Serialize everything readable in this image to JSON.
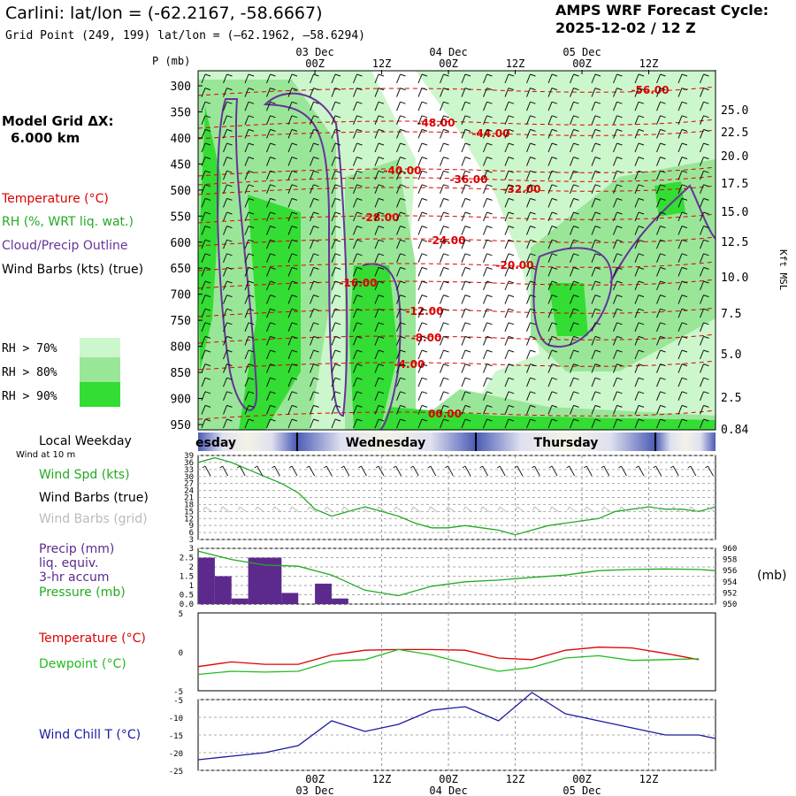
{
  "header": {
    "title": "Carlini:  lat/lon = (-62.2167, -58.6667)",
    "subtitle": "Grid Point (249, 199) lat/lon = (‒62.1962, ‒58.6294)",
    "cycle_line1": "AMPS WRF Forecast Cycle:",
    "cycle_line2": "2025-12-02 / 12  Z",
    "model_grid_line1": "Model Grid ΔX:",
    "model_grid_line2": "6.000 km"
  },
  "legend": {
    "temperature": "Temperature (°C)",
    "rh": "RH (%, WRT liq. wat.)",
    "cloud": "Cloud/Precip Outline",
    "wind": "Wind Barbs (kts) (true)",
    "rh70": "RH > 70%",
    "rh80": "RH > 80%",
    "rh90": "RH > 90%"
  },
  "time_axis": {
    "top_dates": [
      "03 Dec",
      "04 Dec",
      "05 Dec"
    ],
    "top_hours": [
      "00Z",
      "12Z",
      "00Z",
      "12Z",
      "00Z",
      "12Z"
    ],
    "bottom_hours": [
      "00Z",
      "12Z",
      "00Z",
      "12Z",
      "00Z",
      "12Z"
    ],
    "bottom_dates": [
      "03 Dec",
      "04 Dec",
      "05 Dec"
    ]
  },
  "weekday": {
    "label": "Local Weekday",
    "days": [
      "esday",
      "Wednesday",
      "Thursday"
    ]
  },
  "side_labels": {
    "wind_at": "Wind at 10 m",
    "wind_spd": "Wind Spd (kts)",
    "wind_barbs_true": "Wind Barbs (true)",
    "wind_barbs_grid": "Wind Barbs (grid)",
    "precip1": "Precip (mm)",
    "precip2": "liq. equiv.",
    "precip3": "3-hr accum",
    "pressure": "Pressure (mb)",
    "pressure_unit": "(mb)",
    "temperature": "Temperature (°C)",
    "dewpoint": "Dewpoint (°C)",
    "windchill": "Wind Chill T (°C)"
  },
  "colors": {
    "rh70": "#ccf7cc",
    "rh80": "#99e699",
    "rh90": "#33dd33",
    "temperature": "#dd0000",
    "cloud_outline": "#663399",
    "wind_speed": "#22aa22",
    "precip": "#5c2a8c",
    "dewpoint": "#22bb22",
    "windchill": "#1a1aa0"
  },
  "chart_data": [
    {
      "type": "heatmap",
      "ylabel": "P (mb)",
      "y2label": "Kft MSL",
      "yticks": [
        "300",
        "350",
        "400",
        "450",
        "500",
        "550",
        "600",
        "650",
        "700",
        "750",
        "800",
        "850",
        "900",
        "950"
      ],
      "y2ticks": [
        "25.0",
        "22.5",
        "20.0",
        "17.5",
        "15.0",
        "12.5",
        "10.0",
        "7.5",
        "5.0",
        "2.5",
        "0.84"
      ],
      "temperature_contours": [
        "-56.00",
        "-48.00",
        "-44.00",
        "-40.00",
        "-36.00",
        "-32.00",
        "-28.00",
        "-24.00",
        "-20.00",
        "-16.00",
        "-12.00",
        "-8.00",
        "-4.00",
        "00.00"
      ]
    },
    {
      "type": "line",
      "title": "Wind Spd (kts)",
      "yticks": [
        "39",
        "36",
        "33",
        "30",
        "27",
        "24",
        "21",
        "18",
        "15",
        "12",
        "9",
        "6",
        "3"
      ],
      "ylim": [
        3,
        39
      ],
      "x_hours": [
        -21,
        -18,
        -15,
        -12,
        -9,
        -6,
        -3,
        0,
        3,
        6,
        9,
        12,
        15,
        18,
        21,
        24,
        27,
        30,
        33,
        36,
        39,
        42,
        45,
        48,
        51,
        54,
        57,
        60,
        63,
        66,
        69,
        72
      ],
      "wind_speed_kts": [
        36,
        38,
        36,
        33,
        30,
        27,
        23,
        16,
        13,
        15,
        17,
        15,
        13,
        10,
        8,
        8,
        9,
        8,
        7,
        5,
        7,
        9,
        10,
        11,
        12,
        15,
        16,
        17,
        16,
        16,
        15,
        17
      ]
    },
    {
      "type": "bar",
      "title": "Precip (mm) / Pressure (mb)",
      "yticks": [
        "3",
        "2.5",
        "2",
        "1.5",
        "1",
        "0.5",
        "0.0"
      ],
      "ylim": [
        0,
        3
      ],
      "y2ticks": [
        "960",
        "958",
        "956",
        "954",
        "952",
        "950"
      ],
      "y2lim": [
        950,
        960
      ],
      "precip_mm": [
        2.5,
        1.5,
        0.3,
        2.5,
        2.5,
        0.6,
        0.0,
        1.1,
        0.3
      ],
      "pressure_x_hours": [
        -21,
        -15,
        -9,
        -3,
        3,
        9,
        15,
        21,
        27,
        33,
        39,
        45,
        51,
        57,
        63,
        69,
        72
      ],
      "pressure_mb": [
        959.5,
        958.0,
        957.0,
        956.8,
        955.2,
        952.5,
        951.5,
        953.2,
        954.0,
        954.3,
        954.8,
        955.2,
        956.0,
        956.2,
        956.3,
        956.2,
        956.0
      ]
    },
    {
      "type": "line",
      "title": "Temperature / Dewpoint (°C)",
      "yticks": [
        "5",
        "0",
        "-5"
      ],
      "ylim": [
        -5,
        5
      ],
      "x_hours": [
        -21,
        -15,
        -9,
        -3,
        3,
        9,
        15,
        21,
        27,
        33,
        39,
        45,
        51,
        57,
        63,
        69
      ],
      "temperature_c": [
        -1.9,
        -1.3,
        -1.6,
        -1.6,
        -0.4,
        0.2,
        0.3,
        0.3,
        0.2,
        -0.8,
        -1.0,
        0.2,
        0.6,
        0.5,
        -0.2,
        -1.0
      ],
      "dewpoint_c": [
        -2.9,
        -2.5,
        -2.6,
        -2.5,
        -1.2,
        -1.0,
        0.3,
        -0.4,
        -1.5,
        -2.5,
        -2.0,
        -0.8,
        -0.5,
        -1.1,
        -1.0,
        -0.9
      ]
    },
    {
      "type": "line",
      "title": "Wind Chill T (°C)",
      "yticks": [
        "-5",
        "-10",
        "-15",
        "-20",
        "-25"
      ],
      "ylim": [
        -25,
        -5
      ],
      "x_hours": [
        -21,
        -15,
        -9,
        -3,
        3,
        9,
        15,
        21,
        27,
        33,
        39,
        45,
        51,
        57,
        63,
        69,
        72
      ],
      "windchill_c": [
        -22,
        -21,
        -20,
        -18,
        -11,
        -14,
        -12,
        -8,
        -7,
        -11,
        -3,
        -9,
        -11,
        -13,
        -15,
        -15,
        -16
      ]
    }
  ]
}
